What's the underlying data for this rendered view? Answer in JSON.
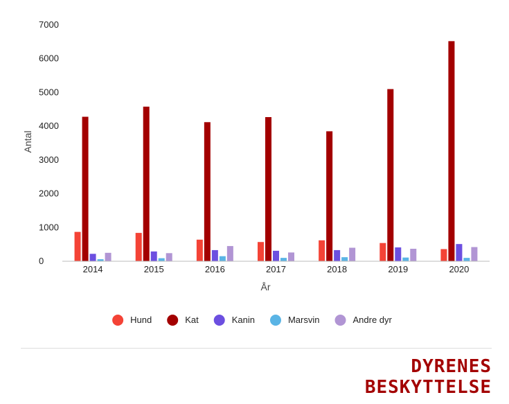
{
  "chart_data": {
    "type": "bar",
    "categories": [
      "2014",
      "2015",
      "2016",
      "2017",
      "2018",
      "2019",
      "2020"
    ],
    "series": [
      {
        "name": "Hund",
        "color": "#f44336",
        "values": [
          870,
          840,
          640,
          570,
          620,
          540,
          360
        ]
      },
      {
        "name": "Kat",
        "color": "#a30000",
        "values": [
          4280,
          4580,
          4120,
          4270,
          3850,
          5100,
          6520
        ]
      },
      {
        "name": "Kanin",
        "color": "#6c4fe0",
        "values": [
          220,
          290,
          330,
          310,
          330,
          410,
          510
        ]
      },
      {
        "name": "Marsvin",
        "color": "#5ab4e5",
        "values": [
          60,
          90,
          150,
          100,
          120,
          110,
          100
        ]
      },
      {
        "name": "Andre dyr",
        "color": "#b195d4",
        "values": [
          250,
          240,
          450,
          260,
          400,
          370,
          420
        ]
      }
    ],
    "xlabel": "År",
    "ylabel": "Antal",
    "ylim": [
      0,
      7000
    ],
    "yticks": [
      0,
      1000,
      2000,
      3000,
      4000,
      5000,
      6000,
      7000
    ],
    "grid": false,
    "legend_position": "bottom"
  },
  "brand": {
    "line1": "DYRENES",
    "line2": "BESKYTTELSE",
    "color": "#a30000"
  }
}
